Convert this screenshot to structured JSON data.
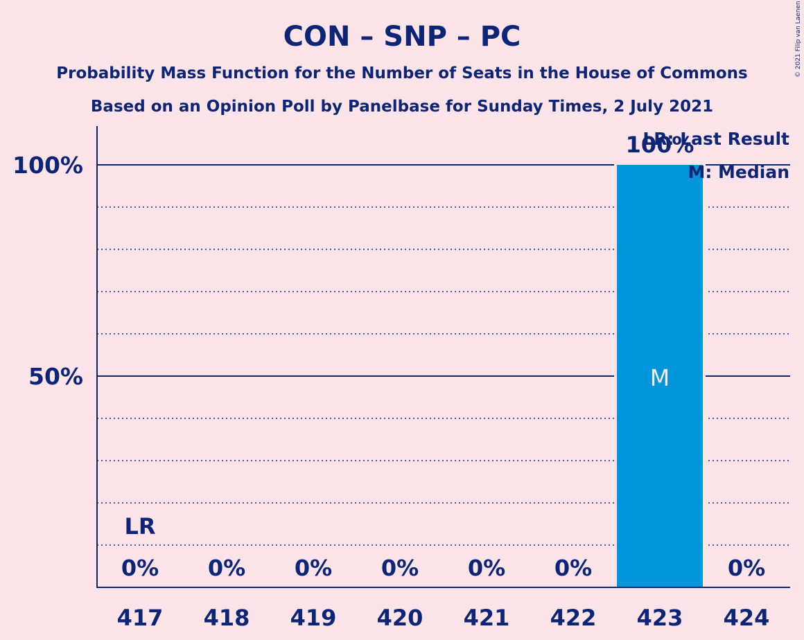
{
  "chart_data": {
    "type": "bar",
    "title": "CON – SNP – PC",
    "subtitle_1": "Probability Mass Function for the Number of Seats in the House of Commons",
    "subtitle_2": "Based on an Opinion Poll by Panelbase for Sunday Times, 2 July 2021",
    "categories": [
      "417",
      "418",
      "419",
      "420",
      "421",
      "422",
      "423",
      "424"
    ],
    "values": [
      0,
      0,
      0,
      0,
      0,
      0,
      100,
      0
    ],
    "value_labels": [
      "0%",
      "0%",
      "0%",
      "0%",
      "0%",
      "0%",
      "100%",
      "0%"
    ],
    "ylim": [
      0,
      100
    ],
    "yticks": [
      {
        "value": 50,
        "label": "50%"
      },
      {
        "value": 100,
        "label": "100%"
      }
    ],
    "minor_gridlines": [
      10,
      20,
      30,
      40,
      60,
      70,
      80,
      90
    ],
    "last_result": {
      "category": "417",
      "label": "LR"
    },
    "median": {
      "category": "423",
      "label": "M"
    },
    "legend": {
      "position": "top-right",
      "items": [
        "LR: Last Result",
        "M: Median"
      ]
    },
    "copyright": "© 2021 Filip van Laenen",
    "colors": {
      "background": "#fde4e9",
      "bar": "#0096db",
      "text": "#0c2577",
      "median_label": "#fde4e9"
    }
  }
}
